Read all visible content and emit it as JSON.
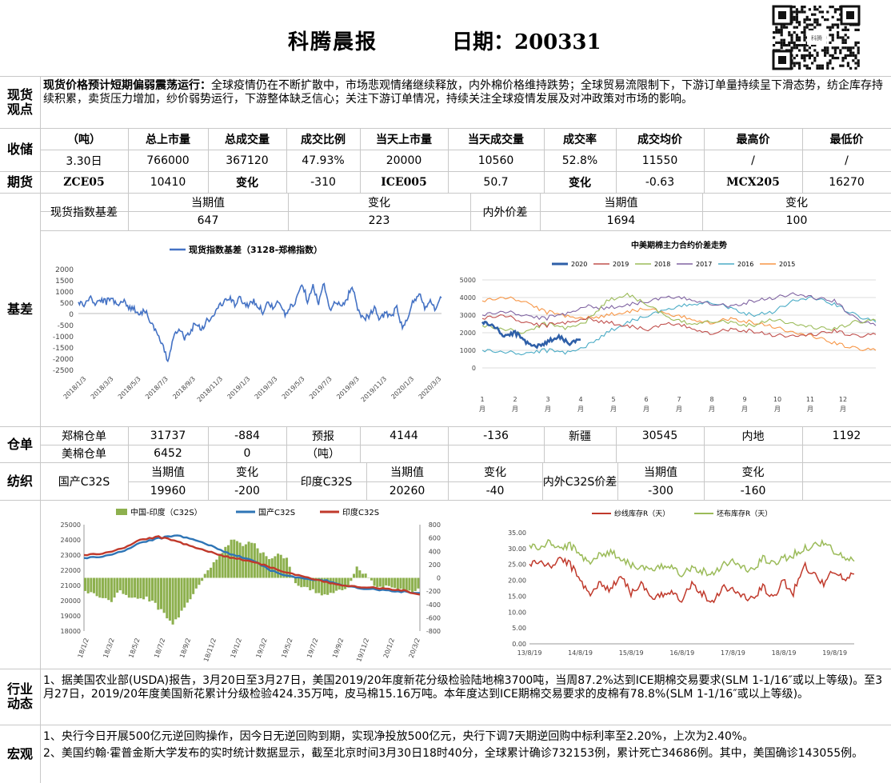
{
  "header": {
    "title": "科腾晨报",
    "date_label": "日期：200331"
  },
  "sections": {
    "view": "现货\n观点",
    "receipt": "收储",
    "futures": "期货",
    "basis": "基差",
    "warehouse": "仓单",
    "yarn": "纺织",
    "industry": "行业\n动态",
    "macro": "宏观"
  },
  "view": {
    "lead": "现货价格预计短期偏弱震荡运行：",
    "body": "全球疫情仍在不断扩散中，市场悲观情绪继续释放，内外棉价格维持跌势；全球贸易流限制下，下游订单量持续呈下滑态势，纺企库存持续积累，卖货压力增加，纱价弱势运行，下游整体缺乏信心；关注下游订单情况，持续关注全球疫情发展及对冲政策对市场的影响。"
  },
  "receipt": {
    "headers": [
      "（吨）",
      "总上市量",
      "总成交量",
      "成交比例",
      "当天上市量",
      "当天成交量",
      "成交率",
      "成交均价",
      "最高价",
      "最低价"
    ],
    "values": [
      "3.30日",
      "766000",
      "367120",
      "47.93%",
      "20000",
      "10560",
      "52.8%",
      "11550",
      "/",
      "/"
    ]
  },
  "futures": [
    "ZCE05",
    "10410",
    "变化",
    "-310",
    "ICE005",
    "50.7",
    "变化",
    "-0.63",
    "MCX205",
    "16270"
  ],
  "basis_table": {
    "label1": "现货指数基差",
    "cur1": "当期值",
    "chg1": "变化",
    "cur1_val": "647",
    "chg1_val": "223",
    "label2": "内外价差",
    "cur2": "当期值",
    "chg2": "变化",
    "cur2_val": "1694",
    "chg2_val": "100"
  },
  "warehouse": {
    "r1": [
      "郑棉仓单",
      "31737",
      "-884",
      "预报",
      "4144",
      "-136",
      "新疆",
      "30545",
      "内地",
      "1192"
    ],
    "r2": [
      "美棉仓单",
      "6452",
      "0",
      "（吨）"
    ]
  },
  "yarn": {
    "r1": [
      "国产C32S",
      "当期值",
      "变化",
      "印度C32S",
      "当期值",
      "变化",
      "内外C32S价差",
      "当期值",
      "变化"
    ],
    "r2": [
      "19960",
      "-200",
      "20260",
      "-40",
      "-300",
      "-160"
    ]
  },
  "industry": {
    "text": "1、据美国农业部(USDA)报告，3月20日至3月27日，美国2019/20年度新花分级检验陆地棉3700吨，当周87.2%达到ICE期棉交易要求(SLM 1-1/16″或以上等级)。至3月27日，2019/20年度美国新花累计分级检验424.35万吨，皮马棉15.16万吨。本年度达到ICE期棉交易要求的皮棉有78.8%(SLM 1-1/16″或以上等级)。"
  },
  "macro": {
    "line1": "1、央行今日开展500亿元逆回购操作，因今日无逆回购到期，实现净投放500亿元，央行下调7天期逆回购中标利率至2.20%，上次为2.40%。",
    "line2": "2、美国约翰·霍普金斯大学发布的实时统计数据显示，截至北京时间3月30日18时40分，全球累计确诊732153例，累计死亡34686例。其中，美国确诊143055例。"
  },
  "qr_caption": "科腾",
  "chart_data": [
    {
      "type": "line",
      "title": "",
      "series": [
        {
          "name": "现货指数基差（3128-郑棉指数）",
          "color": "#4472c4",
          "values": [
            500,
            380,
            700,
            450,
            600,
            520,
            680,
            430,
            560,
            300,
            200,
            0,
            150,
            -400,
            -900,
            -1400,
            -2150,
            -1000,
            -600,
            -1100,
            -800,
            -400,
            -700,
            -300,
            -200,
            300,
            500,
            700,
            400,
            700,
            300,
            600,
            400,
            100,
            500,
            250,
            550,
            -100,
            300,
            600,
            1400,
            600,
            1300,
            400,
            1400,
            100,
            500,
            300,
            600,
            1300,
            200,
            -200,
            -100,
            200,
            -300,
            100,
            -200,
            300,
            -700,
            -200,
            600,
            850,
            300,
            500,
            200,
            700
          ]
        }
      ],
      "x_labels": [
        "2018/1/3",
        "2018/3/3",
        "2018/5/3",
        "2018/7/3",
        "2018/9/3",
        "2018/11/3",
        "2019/1/3",
        "2019/3/3",
        "2019/5/3",
        "2019/7/3",
        "2019/9/3",
        "2019/11/3",
        "2020/1/3",
        "2020/3/3"
      ],
      "ylim": [
        -2500,
        2000
      ],
      "y_ticks": [
        "2000",
        "1500",
        "1000",
        "500",
        "0",
        "-500",
        "-1000",
        "-1500",
        "-2000",
        "-2500"
      ],
      "xlabel": "",
      "ylabel": ""
    },
    {
      "type": "line",
      "title": "中美期棉主力合约价差走势",
      "series": [
        {
          "name": "2020",
          "color": "#2e5fa8",
          "values": [
            2600,
            2400,
            1800,
            2000,
            1500,
            1200,
            1500,
            1800,
            1400,
            1600
          ]
        },
        {
          "name": "2019",
          "color": "#c0504d",
          "values": [
            2800,
            3000,
            2600,
            2400,
            2600,
            2800,
            2600,
            2400,
            2200,
            2500,
            2300,
            2000,
            2200,
            2100,
            1900,
            1800,
            1900,
            2100,
            1800,
            1900
          ]
        },
        {
          "name": "2018",
          "color": "#9bbb59",
          "values": [
            2400,
            2200,
            2000,
            2500,
            2300,
            2600,
            3800,
            4200,
            3600,
            2800,
            2500,
            2700,
            2600,
            2400,
            2800,
            2500,
            2300,
            2200,
            2600,
            2700
          ]
        },
        {
          "name": "2017",
          "color": "#8064a2",
          "values": [
            3000,
            3200,
            3000,
            2800,
            3100,
            3500,
            3400,
            3600,
            3800,
            4000,
            3900,
            3700,
            3500,
            3800,
            4000,
            4200,
            4000,
            3800,
            2800,
            2400
          ]
        },
        {
          "name": "2016",
          "color": "#4bacc6",
          "values": [
            1000,
            900,
            800,
            1000,
            900,
            1200,
            2000,
            2600,
            3000,
            3300,
            3600,
            3800,
            3400,
            3000,
            3200,
            3800,
            4000,
            3600,
            3000,
            2600
          ]
        },
        {
          "name": "2015",
          "color": "#f79646",
          "values": [
            3800,
            4000,
            3800,
            3200,
            3000,
            2800,
            3000,
            3200,
            3400,
            3000,
            2800,
            2600,
            2800,
            2600,
            2400,
            2000,
            1800,
            1400,
            1100,
            1000
          ]
        }
      ],
      "x_labels": [
        "1\n月",
        "2\n月",
        "3\n月",
        "4\n月",
        "5\n月",
        "6\n月",
        "7\n月",
        "8\n月",
        "9\n月",
        "10\n月",
        "11\n月",
        "12\n月"
      ],
      "ylim": [
        0,
        5000
      ],
      "y_ticks": [
        "5000",
        "4000",
        "3000",
        "2000",
        "1000",
        "0"
      ]
    },
    {
      "type": "bar+line",
      "title": "",
      "bar_series": {
        "name": "中国-印度（C32S）",
        "color": "#8db04e",
        "values": [
          -200,
          -250,
          -300,
          -350,
          -200,
          -280,
          -320,
          -300,
          -400,
          -550,
          -700,
          -500,
          -300,
          -100,
          100,
          300,
          450,
          600,
          500,
          550,
          400,
          300,
          350,
          280,
          -100,
          -150,
          -200,
          -250,
          -220,
          -180,
          -120,
          150,
          50,
          -100,
          -150,
          -120,
          -180,
          -200,
          -160
        ]
      },
      "line_series": [
        {
          "name": "国产C32S",
          "color": "#2e75b6",
          "values": [
            22800,
            22900,
            23200,
            23800,
            24100,
            24300,
            24000,
            23500,
            23000,
            22700,
            22000,
            21600,
            21400,
            21300,
            21000,
            20800,
            20700,
            20600,
            20500
          ]
        },
        {
          "name": "印度C32S",
          "color": "#c0392b",
          "values": [
            23000,
            23100,
            23400,
            24000,
            24200,
            23900,
            23500,
            23100,
            22800,
            22600,
            22200,
            21800,
            21500,
            21200,
            21000,
            20900,
            20800,
            20700,
            20400
          ]
        }
      ],
      "x_labels": [
        "18/1/2",
        "18/3/2",
        "18/5/2",
        "18/7/2",
        "18/9/2",
        "18/11/2",
        "19/1/2",
        "19/3/2",
        "19/5/2",
        "19/7/2",
        "19/9/2",
        "19/11/2",
        "20/1/2",
        "20/3/2"
      ],
      "ylim_left": [
        18000,
        25000
      ],
      "y_ticks_left": [
        "25000",
        "24000",
        "23000",
        "22000",
        "21000",
        "20000",
        "19000",
        "18000"
      ],
      "ylim_right": [
        -800,
        800
      ],
      "y_ticks_right": [
        "800",
        "600",
        "400",
        "200",
        "0",
        "-200",
        "-400",
        "-600",
        "-800"
      ]
    },
    {
      "type": "line",
      "title": "",
      "series": [
        {
          "name": "纱线库存R（天）",
          "color": "#c0392b",
          "values": [
            25,
            26,
            24,
            27,
            25,
            20,
            16,
            19,
            17,
            22,
            16,
            19,
            14,
            15,
            17,
            14,
            19,
            16,
            13,
            18,
            17,
            15,
            14,
            18,
            14,
            20,
            16,
            25,
            22,
            19,
            23,
            20,
            22
          ]
        },
        {
          "name": "坯布库存R（天）",
          "color": "#9bbb59",
          "values": [
            31,
            30,
            32,
            30,
            31,
            28,
            26,
            28,
            29,
            27,
            25,
            24,
            23,
            24,
            25,
            22,
            24,
            23,
            22,
            25,
            26,
            24,
            23,
            27,
            25,
            27,
            28,
            30,
            31,
            32,
            29,
            27,
            26
          ]
        }
      ],
      "x_labels": [
        "13/8/19",
        "14/8/19",
        "15/8/19",
        "16/8/19",
        "17/8/19",
        "18/8/19",
        "19/8/19"
      ],
      "ylim": [
        0,
        35
      ],
      "y_ticks": [
        "35.00",
        "30.00",
        "25.00",
        "20.00",
        "15.00",
        "10.00",
        "5.00",
        "0.00"
      ]
    }
  ]
}
